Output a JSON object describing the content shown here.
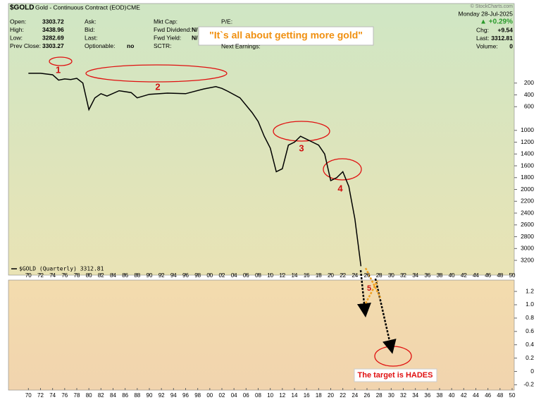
{
  "header": {
    "symbol": "$GOLD",
    "title": "Gold - Continuous Contract (EOD)",
    "exchange": "CME",
    "copyright": "© StockCharts.com",
    "date": "Monday  28-Jul-2025",
    "left": [
      [
        "Open:",
        "3303.72"
      ],
      [
        "High:",
        "3438.96"
      ],
      [
        "Low:",
        "3282.69"
      ],
      [
        "Prev Close:",
        "3303.27"
      ]
    ],
    "mid": [
      [
        "Ask:",
        ""
      ],
      [
        "Bid:",
        ""
      ],
      [
        "Last:",
        ""
      ],
      [
        "Optionable:",
        "no"
      ]
    ],
    "mid2": [
      [
        "Mkt Cap:",
        ""
      ],
      [
        "Fwd Dividend:",
        "N/"
      ],
      [
        "Fwd Yield:",
        "N/"
      ],
      [
        "SCTR:",
        ""
      ]
    ],
    "mid3": [
      "P/E:",
      "Next Earnings:"
    ],
    "change": "▲ +0.29%",
    "right": [
      [
        "Chg:",
        "+9.54"
      ],
      [
        "Last:",
        "3312.81"
      ],
      [
        "Volume:",
        "0"
      ]
    ]
  },
  "annotations": {
    "quote": "\"It`s all about getting more gold\"",
    "target": "The target is HADES",
    "labels": [
      "1",
      "2",
      "3",
      "4",
      "5"
    ]
  },
  "chart_data": [
    {
      "type": "line",
      "legend": "$GOLD (Quarterly) 3312.81",
      "color": "#000000",
      "reverse": true,
      "x": [
        1970,
        1972,
        1974,
        1975,
        1976,
        1977,
        1978,
        1979,
        1980,
        1981,
        1982,
        1983,
        1985,
        1987,
        1988,
        1990,
        1993,
        1996,
        1999,
        2001,
        2002,
        2003,
        2005,
        2007,
        2008,
        2009,
        2010,
        2011,
        2012,
        2013,
        2014,
        2015,
        2016,
        2017,
        2018,
        2019,
        2020,
        2021,
        2022,
        2023,
        2024,
        2025
      ],
      "values": [
        35,
        35,
        60,
        150,
        130,
        140,
        120,
        200,
        650,
        450,
        380,
        420,
        330,
        360,
        450,
        390,
        370,
        380,
        300,
        260,
        290,
        340,
        450,
        700,
        850,
        1100,
        1300,
        1700,
        1650,
        1250,
        1200,
        1100,
        1150,
        1200,
        1250,
        1400,
        1850,
        1800,
        1700,
        1950,
        2500,
        3300
      ],
      "xlim": [
        1966.7,
        2050.35
      ],
      "xticks": [
        {
          "value": 1970,
          "label": "70"
        },
        {
          "value": 1972,
          "label": "72"
        },
        {
          "value": 1974,
          "label": "74"
        },
        {
          "value": 1976,
          "label": "76"
        },
        {
          "value": 1978,
          "label": "78"
        },
        {
          "value": 1980,
          "label": "80"
        },
        {
          "value": 1982,
          "label": "82"
        },
        {
          "value": 1984,
          "label": "84"
        },
        {
          "value": 1986,
          "label": "86"
        },
        {
          "value": 1988,
          "label": "88"
        },
        {
          "value": 1990,
          "label": "90"
        },
        {
          "value": 1992,
          "label": "92"
        },
        {
          "value": 1994,
          "label": "94"
        },
        {
          "value": 1996,
          "label": "96"
        },
        {
          "value": 1998,
          "label": "98"
        },
        {
          "value": 2000,
          "label": "00"
        },
        {
          "value": 2002,
          "label": "02"
        },
        {
          "value": 2004,
          "label": "04"
        },
        {
          "value": 2006,
          "label": "06"
        },
        {
          "value": 2008,
          "label": "08"
        },
        {
          "value": 2010,
          "label": "10"
        },
        {
          "value": 2012,
          "label": "12"
        },
        {
          "value": 2014,
          "label": "14"
        },
        {
          "value": 2016,
          "label": "16"
        },
        {
          "value": 2018,
          "label": "18"
        },
        {
          "value": 2020,
          "label": "20"
        },
        {
          "value": 2022,
          "label": "22"
        },
        {
          "value": 2024,
          "label": "24"
        },
        {
          "value": 2026,
          "label": "26"
        },
        {
          "value": 2028,
          "label": "28"
        },
        {
          "value": 2030,
          "label": "30"
        },
        {
          "value": 2032,
          "label": "32"
        },
        {
          "value": 2034,
          "label": "34"
        },
        {
          "value": 2036,
          "label": "36"
        },
        {
          "value": 2038,
          "label": "38"
        },
        {
          "value": 2040,
          "label": "40"
        },
        {
          "value": 2042,
          "label": "42"
        },
        {
          "value": 2044,
          "label": "44"
        },
        {
          "value": 2046,
          "label": "46"
        },
        {
          "value": 2048,
          "label": "48"
        },
        {
          "value": 2050,
          "label": "50"
        }
      ],
      "ylim": [
        -370,
        3450
      ],
      "yticks": [
        200,
        400,
        600,
        1000,
        1200,
        1400,
        1600,
        1800,
        2000,
        2200,
        2400,
        2600,
        2800,
        3000,
        3200
      ]
    },
    {
      "type": "panel",
      "ylim": [
        -0.28,
        1.37
      ],
      "yticks": [
        -0.2,
        0,
        0.2,
        0.4,
        0.6,
        0.8,
        {
          "value": 1,
          "label": "1.0"
        },
        1.2
      ],
      "xlim": [
        1966.7,
        2050.35
      ],
      "xticks": [
        {
          "value": 1970,
          "label": "70"
        },
        {
          "value": 1972,
          "label": "72"
        },
        {
          "value": 1974,
          "label": "74"
        },
        {
          "value": 1976,
          "label": "76"
        },
        {
          "value": 1978,
          "label": "78"
        },
        {
          "value": 1980,
          "label": "80"
        },
        {
          "value": 1982,
          "label": "82"
        },
        {
          "value": 1984,
          "label": "84"
        },
        {
          "value": 1986,
          "label": "86"
        },
        {
          "value": 1988,
          "label": "88"
        },
        {
          "value": 1990,
          "label": "90"
        },
        {
          "value": 1992,
          "label": "92"
        },
        {
          "value": 1994,
          "label": "94"
        },
        {
          "value": 1996,
          "label": "96"
        },
        {
          "value": 1998,
          "label": "98"
        },
        {
          "value": 2000,
          "label": "00"
        },
        {
          "value": 2002,
          "label": "02"
        },
        {
          "value": 2004,
          "label": "04"
        },
        {
          "value": 2006,
          "label": "06"
        },
        {
          "value": 2008,
          "label": "08"
        },
        {
          "value": 2010,
          "label": "10"
        },
        {
          "value": 2012,
          "label": "12"
        },
        {
          "value": 2014,
          "label": "14"
        },
        {
          "value": 2016,
          "label": "16"
        },
        {
          "value": 2018,
          "label": "18"
        },
        {
          "value": 2020,
          "label": "20"
        },
        {
          "value": 2022,
          "label": "22"
        },
        {
          "value": 2024,
          "label": "24"
        },
        {
          "value": 2026,
          "label": "26"
        },
        {
          "value": 2028,
          "label": "28"
        },
        {
          "value": 2030,
          "label": "30"
        },
        {
          "value": 2032,
          "label": "32"
        },
        {
          "value": 2034,
          "label": "34"
        },
        {
          "value": 2036,
          "label": "36"
        },
        {
          "value": 2038,
          "label": "38"
        },
        {
          "value": 2040,
          "label": "40"
        },
        {
          "value": 2042,
          "label": "42"
        },
        {
          "value": 2044,
          "label": "44"
        },
        {
          "value": 2046,
          "label": "46"
        },
        {
          "value": 2048,
          "label": "48"
        },
        {
          "value": 2050,
          "label": "50"
        }
      ]
    }
  ]
}
